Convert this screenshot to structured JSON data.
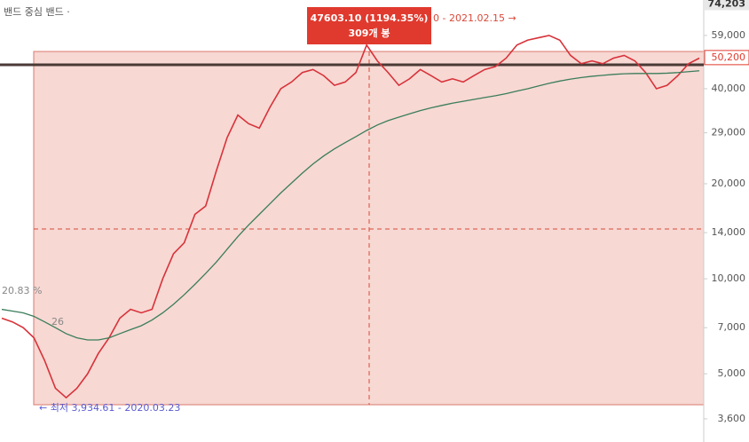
{
  "chart_data": {
    "type": "line",
    "header": "밴드 중심  밴드 ·",
    "tooltip": {
      "change": "47603.10 (1194.35%)",
      "bars": "309개 봉"
    },
    "annotations": {
      "high": "0 - 2021.02.15 →",
      "low": "← 최저 3,934.61 - 2020.03.23",
      "left_pct": "20.83 %",
      "left_mid": "26"
    },
    "log_scale": true,
    "ylim": [
      3040,
      76400
    ],
    "yticks": [
      {
        "value": 3600,
        "label": "3,600"
      },
      {
        "value": 5000,
        "label": "5,000"
      },
      {
        "value": 7000,
        "label": "7,000"
      },
      {
        "value": 10000,
        "label": "10,000"
      },
      {
        "value": 14000,
        "label": "14,000"
      },
      {
        "value": 20000,
        "label": "20,000"
      },
      {
        "value": 29000,
        "label": "29,000"
      },
      {
        "value": 40000,
        "label": "40,000"
      },
      {
        "value": 59000,
        "label": "59,000"
      }
    ],
    "top_price": {
      "value": 74203,
      "label": "74,203"
    },
    "current_price": {
      "value": 50200,
      "label": "50,200"
    },
    "series": [
      {
        "name": "price",
        "color": "#d8323a",
        "values": [
          7500,
          7300,
          7000,
          6500,
          5500,
          4500,
          4200,
          4500,
          5000,
          5800,
          6500,
          7500,
          8000,
          7800,
          8000,
          10000,
          12000,
          13000,
          16000,
          17000,
          22000,
          28000,
          33000,
          31000,
          30000,
          35000,
          40000,
          42000,
          45000,
          46000,
          44000,
          41000,
          42000,
          45000,
          55000,
          49000,
          45000,
          41000,
          43000,
          46000,
          44000,
          42000,
          43000,
          42000,
          44000,
          46000,
          47000,
          50000,
          55000,
          57000,
          58000,
          59000,
          57000,
          51000,
          48000,
          49000,
          48000,
          50000,
          51000,
          49000,
          45000,
          40000,
          41000,
          44000,
          48000,
          50000
        ]
      },
      {
        "name": "ma",
        "color": "#3b7d5a",
        "values": [
          8000,
          7900,
          7800,
          7600,
          7300,
          7000,
          6700,
          6500,
          6400,
          6400,
          6500,
          6700,
          6900,
          7100,
          7400,
          7800,
          8300,
          8900,
          9600,
          10400,
          11300,
          12400,
          13600,
          14800,
          16000,
          17300,
          18700,
          20100,
          21600,
          23100,
          24500,
          25800,
          27000,
          28200,
          29500,
          30700,
          31700,
          32500,
          33300,
          34100,
          34800,
          35400,
          36000,
          36500,
          37000,
          37500,
          38000,
          38600,
          39300,
          40000,
          40800,
          41600,
          42300,
          42900,
          43400,
          43800,
          44100,
          44400,
          44600,
          44700,
          44700,
          44700,
          44800,
          45000,
          45300,
          45600
        ]
      }
    ]
  }
}
